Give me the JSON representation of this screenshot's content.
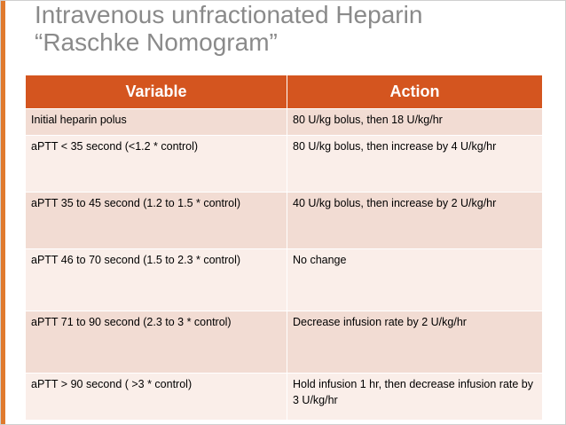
{
  "title": {
    "line1": "Intravenous unfractionated Heparin",
    "line2": "“Raschke Nomogram”"
  },
  "table": {
    "headers": [
      "Variable",
      "Action"
    ],
    "rows": [
      {
        "variable": "Initial heparin polus",
        "action": "80 U/kg bolus, then 18 U/kg/hr"
      },
      {
        "variable": "aPTT < 35 second (<1.2 * control)",
        "action": "80 U/kg bolus, then increase by 4 U/kg/hr"
      },
      {
        "variable": "aPTT 35 to 45 second (1.2 to 1.5 * control)",
        "action": "40 U/kg bolus, then increase by 2 U/kg/hr"
      },
      {
        "variable": "aPTT 46 to 70 second (1.5 to 2.3 * control)",
        "action": "No change"
      },
      {
        "variable": "aPTT 71 to 90 second (2.3 to 3 * control)",
        "action": "Decrease infusion rate by 2 U/kg/hr"
      },
      {
        "variable": "aPTT > 90 second ( >3 * control)",
        "action": "Hold infusion 1 hr, then decrease infusion rate by 3 U/kg/hr"
      }
    ]
  },
  "colors": {
    "accent_bar": "#e07a2e",
    "header_bg": "#d4551f",
    "row_odd": "#f2dcd3",
    "row_even": "#faeee9",
    "title_text": "#8a8a8a"
  }
}
